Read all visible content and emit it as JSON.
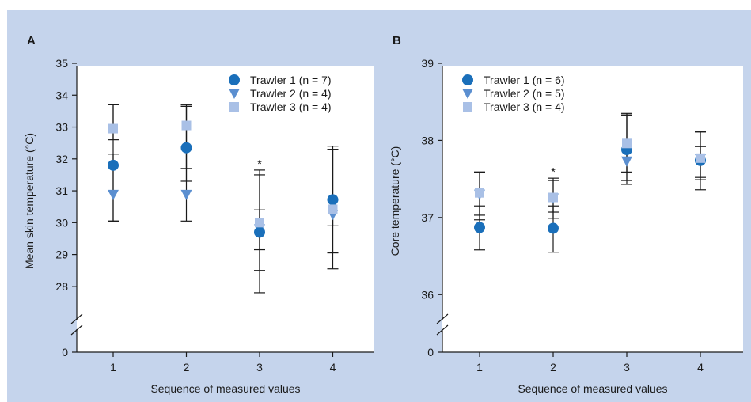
{
  "colors": {
    "background": "#c5d4ec",
    "trawler1": "#1a6fba",
    "trawler2": "#5b8fd0",
    "trawler3": "#a9c0e6",
    "axis": "#1a1a1a"
  },
  "chart_data": [
    {
      "type": "scatter",
      "panel_label": "A",
      "ylabel": "Mean skin temperature (°C)",
      "xlabel": "Sequence of measured values",
      "categories": [
        "1",
        "2",
        "3",
        "4"
      ],
      "yticks": [
        "28",
        "29",
        "30",
        "31",
        "32",
        "33",
        "34",
        "35"
      ],
      "ylim": [
        27.5,
        35
      ],
      "axis_break": true,
      "zero_label": "0",
      "legend_position": "top-right",
      "significance": [
        {
          "x": 3,
          "label": "*"
        }
      ],
      "series": [
        {
          "name": "Trawler 1 (n = 7)",
          "marker": "circle",
          "values": [
            31.8,
            32.35,
            29.7,
            30.72
          ],
          "err_lo": [
            30.05,
            31.3,
            27.8,
            28.55
          ],
          "err_hi": [
            33.7,
            33.65,
            31.5,
            32.3
          ]
        },
        {
          "name": "Trawler 2 (n = 4)",
          "marker": "triangle-down",
          "values": [
            30.88,
            30.88,
            29.8,
            30.25
          ],
          "err_lo": [
            30.05,
            30.05,
            29.15,
            29.05
          ],
          "err_hi": [
            32.15,
            33.65,
            31.65,
            32.4
          ]
        },
        {
          "name": "Trawler 3 (n = 4)",
          "marker": "square",
          "values": [
            32.95,
            33.05,
            30.0,
            30.42
          ],
          "err_lo": [
            32.6,
            31.7,
            28.5,
            29.9
          ],
          "err_hi": [
            33.7,
            33.7,
            30.4,
            32.3
          ]
        }
      ]
    },
    {
      "type": "scatter",
      "panel_label": "B",
      "ylabel": "Core temperature (°C)",
      "xlabel": "Sequence of measured values",
      "categories": [
        "1",
        "2",
        "3",
        "4"
      ],
      "yticks": [
        "36",
        "37",
        "38",
        "39"
      ],
      "ylim": [
        35.9,
        39
      ],
      "axis_break": true,
      "zero_label": "0",
      "legend_position": "top-left",
      "significance": [
        {
          "x": 2,
          "label": "*"
        }
      ],
      "series": [
        {
          "name": "Trawler 1 (n = 6)",
          "marker": "circle",
          "values": [
            36.87,
            36.86,
            37.88,
            37.74
          ],
          "err_lo": [
            36.58,
            36.55,
            37.43,
            37.36
          ],
          "err_hi": [
            37.15,
            37.15,
            38.33,
            38.11
          ]
        },
        {
          "name": "Trawler 2 (n = 5)",
          "marker": "triangle-down",
          "values": [
            37.3,
            37.25,
            37.73,
            37.76
          ],
          "err_lo": [
            36.97,
            36.99,
            37.48,
            37.49
          ],
          "err_hi": [
            37.59,
            37.48,
            38.35,
            38.11
          ]
        },
        {
          "name": "Trawler 3 (n = 4)",
          "marker": "square",
          "values": [
            37.32,
            37.26,
            37.96,
            37.77
          ],
          "err_lo": [
            37.03,
            37.07,
            37.59,
            37.52
          ],
          "err_hi": [
            37.59,
            37.51,
            38.33,
            37.92
          ]
        }
      ]
    }
  ]
}
